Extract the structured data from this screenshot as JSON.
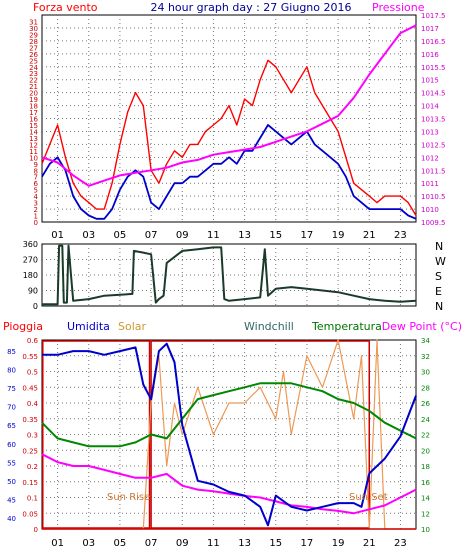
{
  "chart_data": [
    {
      "type": "line",
      "title": "24 hour graph day : 27 Giugno 2016",
      "left_label": "Forza vento",
      "right_label": "Pressione",
      "x_ticks": [
        "01",
        "03",
        "05",
        "07",
        "09",
        "11",
        "13",
        "15",
        "17",
        "19",
        "21",
        "23"
      ],
      "x_range_hours": [
        0,
        24
      ],
      "y_left": {
        "ticks": [
          0,
          1,
          2,
          3,
          4,
          5,
          6,
          7,
          8,
          9,
          10,
          11,
          12,
          13,
          14,
          15,
          16,
          17,
          18,
          19,
          20,
          21,
          22,
          23,
          24,
          25,
          26,
          27,
          28,
          29,
          30,
          31
        ],
        "range": [
          0,
          32
        ]
      },
      "y_right": {
        "ticks": [
          "1009.5",
          "1010",
          "1010.5",
          "1011",
          "1011.5",
          "1012",
          "1012.5",
          "1013",
          "1013.5",
          "1014",
          "1014.5",
          "1015",
          "1015.5",
          "1016",
          "1016.5",
          "1017",
          "1017.5"
        ],
        "range": [
          1009.5,
          1017.5
        ]
      },
      "series": [
        {
          "color": "#ff0000",
          "hours": [
            0,
            0.5,
            1,
            1.5,
            2,
            2.5,
            3,
            3.5,
            4,
            4.5,
            5,
            5.5,
            6,
            6.5,
            7,
            7.5,
            8,
            8.5,
            9,
            9.5,
            10,
            10.5,
            11,
            11.5,
            12,
            12.5,
            13,
            13.5,
            14,
            14.5,
            15,
            15.5,
            16,
            16.5,
            17,
            17.5,
            18,
            18.5,
            19,
            19.5,
            20,
            20.5,
            21,
            21.5,
            22,
            22.5,
            23,
            23.5,
            24
          ],
          "values": [
            9,
            12,
            15,
            10,
            6,
            4,
            3,
            2,
            2,
            6,
            12,
            17,
            20,
            18,
            8,
            6,
            9,
            11,
            10,
            12,
            12,
            14,
            15,
            16,
            18,
            15,
            19,
            18,
            22,
            25,
            24,
            22,
            20,
            22,
            24,
            20,
            18,
            16,
            14,
            10,
            6,
            5,
            4,
            3,
            4,
            4,
            4,
            3,
            1
          ]
        },
        {
          "color": "#0000cc",
          "hours": [
            0,
            0.5,
            1,
            1.5,
            2,
            2.5,
            3,
            3.5,
            4,
            4.5,
            5,
            5.5,
            6,
            6.5,
            7,
            7.5,
            8,
            8.5,
            9,
            9.5,
            10,
            10.5,
            11,
            11.5,
            12,
            12.5,
            13,
            13.5,
            14,
            14.5,
            15,
            15.5,
            16,
            16.5,
            17,
            17.5,
            18,
            18.5,
            19,
            19.5,
            20,
            20.5,
            21,
            21.5,
            22,
            22.5,
            23,
            23.5,
            24
          ],
          "values": [
            7,
            9,
            10,
            8,
            4,
            2,
            1,
            0.5,
            0.5,
            2,
            5,
            7,
            8,
            7,
            3,
            2,
            4,
            6,
            6,
            7,
            7,
            8,
            9,
            9,
            10,
            9,
            11,
            11,
            13,
            15,
            14,
            13,
            12,
            13,
            14,
            12,
            11,
            10,
            9,
            7,
            4,
            3,
            2,
            2,
            2,
            2,
            2,
            1,
            0.5
          ]
        },
        {
          "axis": "right",
          "color": "#ff00ff",
          "hours": [
            0,
            1,
            2,
            3,
            4,
            5,
            6,
            7,
            8,
            9,
            10,
            11,
            12,
            13,
            14,
            15,
            16,
            17,
            18,
            19,
            20,
            21,
            22,
            23,
            24
          ],
          "values": [
            1012,
            1011.8,
            1011.3,
            1010.9,
            1011.1,
            1011.3,
            1011.4,
            1011.5,
            1011.6,
            1011.8,
            1011.9,
            1012.1,
            1012.2,
            1012.3,
            1012.4,
            1012.6,
            1012.8,
            1013,
            1013.3,
            1013.6,
            1014.3,
            1015.2,
            1016,
            1016.8,
            1017.1
          ]
        }
      ]
    },
    {
      "type": "line",
      "right_labels": [
        "N",
        "W",
        "S",
        "E",
        "N"
      ],
      "y_ticks": [
        "360",
        "270",
        "180",
        "90",
        "0"
      ],
      "y_range": [
        0,
        360
      ],
      "series": [
        {
          "color": "#1a3a2a",
          "hours": [
            0,
            1,
            1.1,
            1.3,
            1.4,
            1.6,
            1.7,
            2,
            3,
            4,
            5,
            5.8,
            5.9,
            6.5,
            7,
            7.3,
            7.5,
            7.8,
            8,
            9,
            10,
            11,
            11.5,
            11.7,
            12,
            13,
            14,
            14.3,
            14.5,
            15,
            16,
            17,
            18,
            19,
            20,
            21,
            22,
            23,
            24
          ],
          "values": [
            10,
            10,
            350,
            350,
            20,
            20,
            350,
            30,
            40,
            60,
            65,
            70,
            320,
            310,
            300,
            20,
            40,
            60,
            250,
            320,
            330,
            340,
            340,
            40,
            30,
            40,
            50,
            330,
            60,
            100,
            110,
            100,
            90,
            80,
            60,
            40,
            30,
            25,
            30
          ]
        }
      ]
    },
    {
      "type": "line",
      "labels": {
        "pioggia": "Pioggia",
        "umidita": "Umidita",
        "solar": "Solar",
        "windchill": "Windchill",
        "temperatura": "Temperatura",
        "dewpoint": "Dew Point (°C)"
      },
      "annotations": {
        "sunrise": "Sun Rise",
        "sunset": "Sun Set"
      },
      "y_rain": {
        "ticks": [
          "0",
          "0.05",
          "0.1",
          "0.15",
          "0.2",
          "0.25",
          "0.3",
          "0.35",
          "0.4",
          "0.45",
          "0.5",
          "0.55",
          "0.6"
        ],
        "range": [
          0,
          0.6
        ]
      },
      "y_humidity": {
        "ticks": [
          "40",
          "45",
          "50",
          "55",
          "60",
          "65",
          "70",
          "75",
          "80",
          "85"
        ],
        "range": [
          37,
          88
        ]
      },
      "y_temp": {
        "ticks": [
          "10",
          "12",
          "14",
          "16",
          "18",
          "20",
          "22",
          "24",
          "26",
          "28",
          "30",
          "32",
          "34"
        ],
        "range": [
          10,
          34
        ]
      },
      "series": [
        {
          "name": "Pioggia",
          "color": "#cc0000",
          "hours": [
            0,
            24
          ],
          "values": [
            0,
            0
          ]
        },
        {
          "name": "Umidita",
          "color": "#0000cc",
          "hours": [
            0,
            1,
            2,
            3,
            4,
            5,
            6,
            6.5,
            7,
            7.5,
            8,
            8.5,
            9,
            10,
            11,
            12,
            13,
            14,
            14.5,
            15,
            16,
            17,
            18,
            19,
            20,
            20.5,
            21,
            22,
            23,
            24
          ],
          "values": [
            84,
            84,
            85,
            85,
            84,
            85,
            86,
            76,
            72,
            85,
            87,
            82,
            65,
            50,
            49,
            47,
            46,
            43,
            38,
            46,
            43,
            42,
            43,
            44,
            44,
            43,
            52,
            56,
            62,
            73
          ]
        },
        {
          "name": "Solar",
          "color": "#ee9955",
          "hours": [
            0,
            6.5,
            7,
            7.5,
            8,
            8.5,
            9,
            10,
            11,
            11.5,
            12,
            13,
            14,
            15,
            15.5,
            16,
            17,
            18,
            19,
            20,
            20.5,
            21,
            21.5,
            22,
            24
          ],
          "values": [
            0,
            0,
            0.4,
            0.55,
            0.2,
            0.4,
            0.3,
            0.45,
            0.3,
            0.35,
            0.4,
            0.4,
            0.45,
            0.35,
            0.5,
            0.3,
            0.55,
            0.45,
            0.6,
            0.35,
            0.55,
            0,
            0.6,
            0,
            0
          ]
        },
        {
          "name": "Windchill",
          "color": "#008800",
          "hours": [
            0,
            1,
            2,
            3,
            4,
            5,
            6,
            7,
            8,
            9,
            10,
            11,
            12,
            13,
            14,
            15,
            16,
            17,
            18,
            19,
            20,
            21,
            22,
            23,
            24
          ],
          "values": [
            23.5,
            21.5,
            21,
            20.5,
            20.5,
            20.5,
            21,
            22,
            21.5,
            24,
            26.5,
            27,
            27.5,
            28,
            28.5,
            28.5,
            28.5,
            28,
            27.5,
            26.5,
            26,
            25,
            23.5,
            22.5,
            21.5
          ]
        },
        {
          "name": "Dew Point (°C)",
          "color": "#ff00ff",
          "hours": [
            0,
            1,
            2,
            3,
            4,
            5,
            6,
            7,
            8,
            9,
            10,
            11,
            12,
            13,
            14,
            15,
            16,
            17,
            18,
            19,
            20,
            21,
            22,
            23,
            24
          ],
          "values": [
            19.5,
            18.5,
            18,
            18,
            17.5,
            17,
            16.5,
            16.5,
            17,
            15.5,
            15,
            14.8,
            14.5,
            14.2,
            14,
            13.5,
            13,
            12.8,
            12.5,
            12.3,
            12,
            12.5,
            13,
            14,
            15
          ]
        }
      ]
    }
  ]
}
